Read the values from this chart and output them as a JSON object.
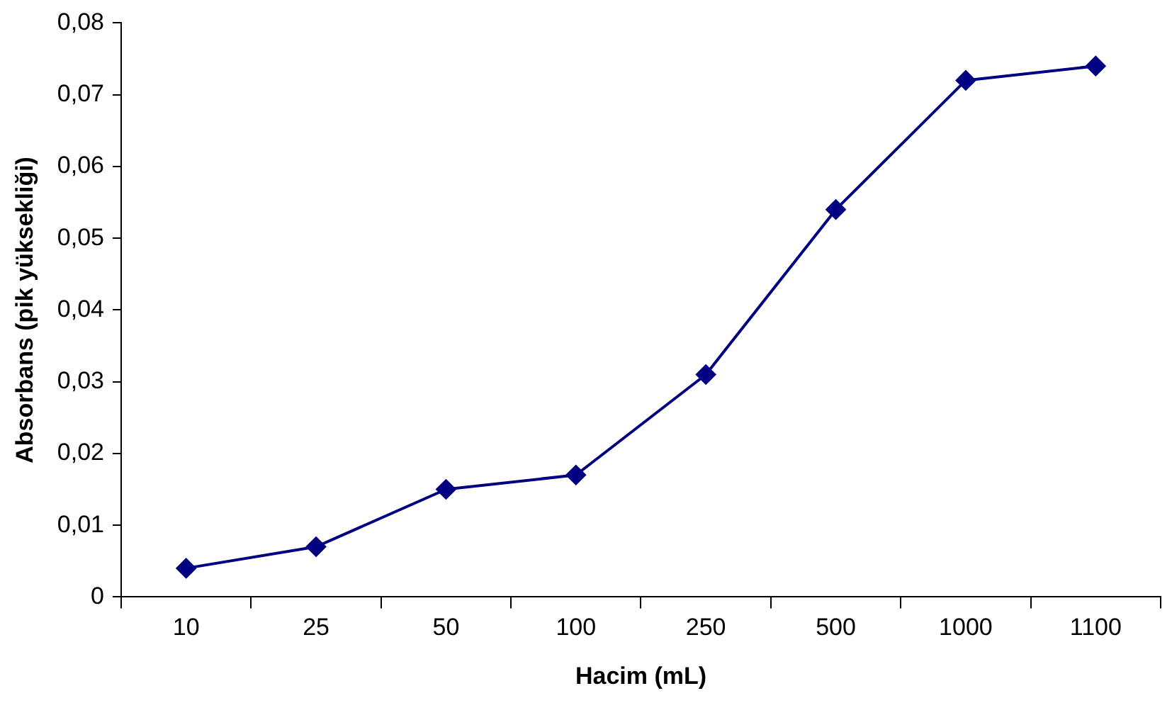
{
  "chart_data": {
    "type": "line",
    "xlabel": "Hacim (mL)",
    "ylabel": "Absorbans (pik yüksekliği)",
    "categories": [
      "10",
      "25",
      "50",
      "100",
      "250",
      "500",
      "1000",
      "1100"
    ],
    "series": [
      {
        "color": "#000080",
        "values": [
          0.004,
          0.007,
          0.015,
          0.017,
          0.031,
          0.054,
          0.072,
          0.074
        ]
      }
    ],
    "ylim": [
      0,
      0.08
    ],
    "yticks": [
      0,
      {
        "value": 0.01,
        "label": "0,01"
      },
      {
        "value": 0.02,
        "label": "0,02"
      },
      {
        "value": 0.03,
        "label": "0,03"
      },
      {
        "value": 0.04,
        "label": "0,04"
      },
      {
        "value": 0.05,
        "label": "0,05"
      },
      {
        "value": 0.06,
        "label": "0,06"
      },
      {
        "value": 0.07,
        "label": "0,07"
      },
      {
        "value": 0.08,
        "label": "0,08"
      }
    ],
    "grid": false,
    "legend": false,
    "marker": "diamond",
    "line_style": "solid"
  }
}
